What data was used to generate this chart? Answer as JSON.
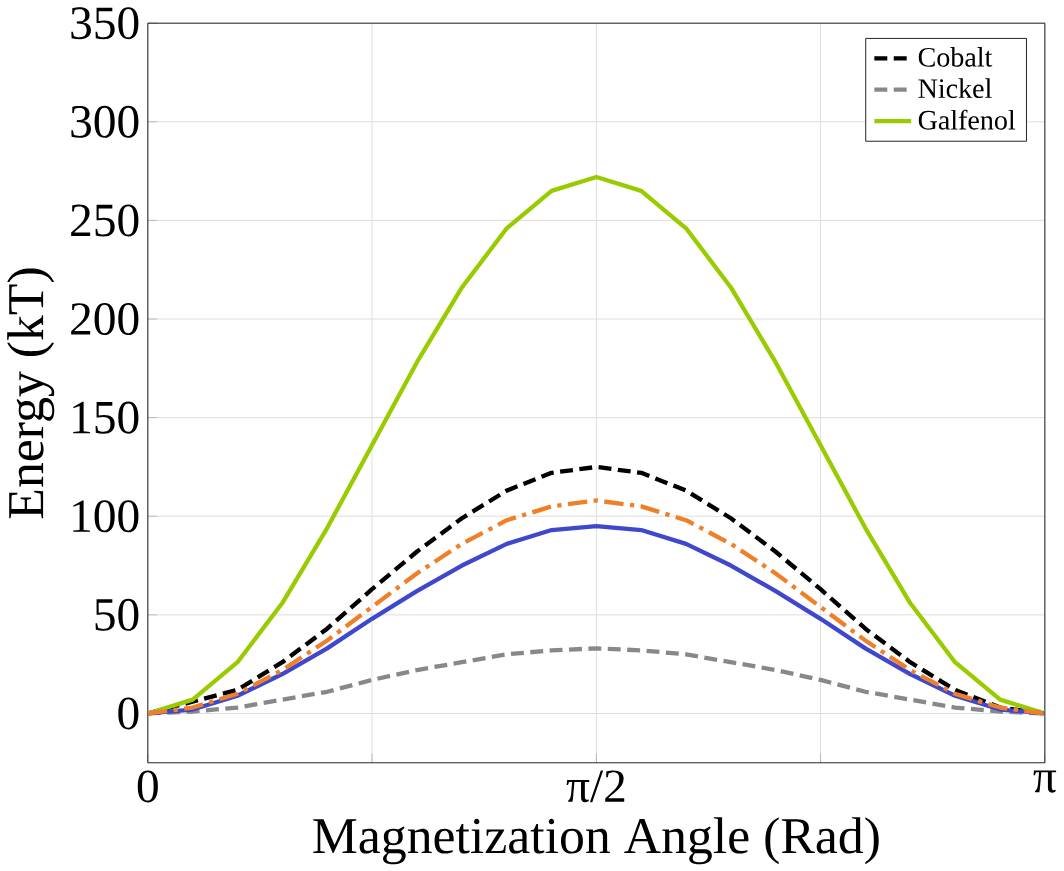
{
  "chart_data": {
    "type": "line",
    "xlabel": "Magnetization Angle (Rad)",
    "ylabel": "Energy (kT)",
    "x": [
      0,
      0.157,
      0.314,
      0.471,
      0.628,
      0.785,
      0.942,
      1.1,
      1.257,
      1.414,
      1.571,
      1.728,
      1.885,
      2.042,
      2.199,
      2.356,
      2.513,
      2.67,
      2.827,
      2.985,
      3.1416
    ],
    "series": [
      {
        "name": "Cobalt",
        "color": "#000000",
        "line_style": "dashed",
        "values": [
          0,
          null,
          12,
          26,
          43,
          63,
          82,
          99,
          113,
          122,
          125,
          122,
          113,
          99,
          82,
          63,
          43,
          26,
          12,
          3,
          0
        ]
      },
      {
        "name": "Nickel",
        "color": "#888888",
        "line_style": "dashed",
        "values": [
          0,
          1,
          3,
          7,
          11,
          17,
          22,
          26,
          30,
          32,
          33,
          32,
          30,
          26,
          22,
          17,
          11,
          7,
          3,
          1,
          0
        ]
      },
      {
        "name": "Galfenol",
        "color": "#99cc00",
        "line_style": "solid",
        "values": [
          0,
          7,
          26,
          56,
          94,
          136,
          178,
          216,
          246,
          265,
          272,
          265,
          246,
          216,
          178,
          136,
          94,
          56,
          26,
          7,
          0
        ]
      },
      {
        "color": "#3f48cc",
        "line_style": "solid",
        "values": [
          0,
          2,
          9,
          20,
          33,
          48,
          62,
          75,
          86,
          93,
          95,
          93,
          86,
          75,
          62,
          48,
          33,
          20,
          9,
          2,
          0
        ]
      },
      {
        "color": "#f07f2a",
        "line_style": "dashdot",
        "values": [
          0,
          3,
          10,
          22,
          37,
          54,
          71,
          86,
          98,
          105,
          108,
          105,
          98,
          86,
          71,
          54,
          37,
          22,
          10,
          3,
          0
        ]
      }
    ],
    "xlim": [
      0,
      3.1416
    ],
    "ylim": [
      -25,
      350
    ],
    "xticks": [
      {
        "value": 0,
        "label": "0"
      },
      {
        "value": 0.785,
        "label": null
      },
      {
        "value": 1.571,
        "label": "π/2"
      },
      {
        "value": 2.356,
        "label": null
      },
      {
        "value": 3.1416,
        "label": "π"
      }
    ],
    "yticks": [
      0,
      50,
      100,
      150,
      200,
      250,
      300,
      350
    ],
    "grid": true,
    "legend": "top right"
  }
}
